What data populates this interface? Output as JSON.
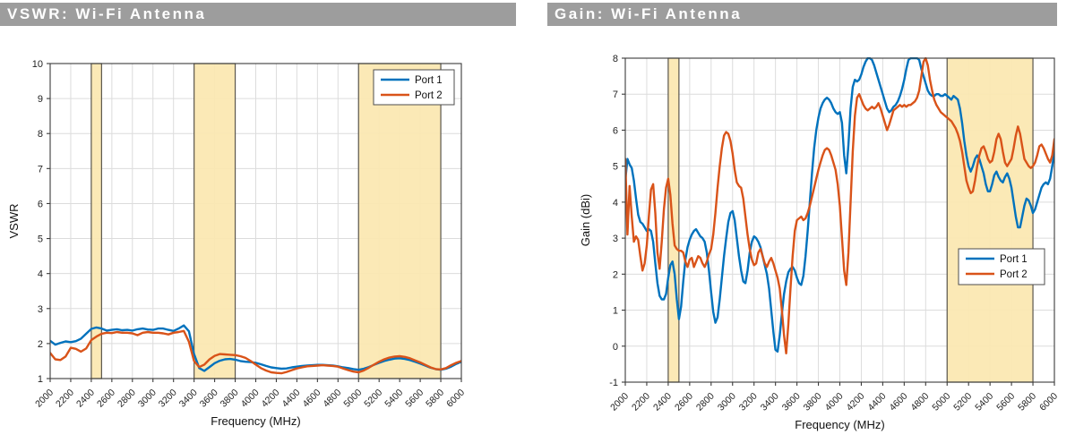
{
  "styles": {
    "page_bg": "#FFFFFF",
    "plot_bg": "#FFFFFF",
    "titlebar_bg": "#9D9D9D",
    "titlebar_text": "#FFFFFF",
    "grid_color": "#DCDCDC",
    "axis_color": "#3B3B3B",
    "tick_label_color": "#222222",
    "band_fill": "#FBE7B0",
    "band_border": "#5B574D",
    "legend_bg": "#FFFFFF",
    "legend_border": "#4D4D4D"
  },
  "chart_data": [
    {
      "type": "line",
      "title": "VSWR: Wi-Fi Antenna",
      "xlabel": "Frequency (MHz)",
      "ylabel": "VSWR",
      "xlim": [
        2000,
        6000
      ],
      "ylim": [
        1,
        10
      ],
      "xticks": [
        2000,
        2200,
        2400,
        2600,
        2800,
        3000,
        3200,
        3400,
        3600,
        3800,
        4000,
        4200,
        4400,
        4600,
        4800,
        5000,
        5200,
        5400,
        5600,
        5800,
        6000
      ],
      "yticks": [
        1,
        2,
        3,
        4,
        5,
        6,
        7,
        8,
        9,
        10
      ],
      "grid": true,
      "legend": {
        "entries": [
          "Port 1",
          "Port 2"
        ],
        "location": "northeast"
      },
      "highlight_bands": [
        [
          2400,
          2500
        ],
        [
          3400,
          3800
        ],
        [
          5000,
          5800
        ]
      ],
      "x_start": 2000,
      "x_step": 50,
      "series": [
        {
          "name": "Port 1",
          "color": "#0072BD",
          "values": [
            2.08,
            1.97,
            2.02,
            2.06,
            2.04,
            2.07,
            2.14,
            2.28,
            2.42,
            2.46,
            2.43,
            2.37,
            2.39,
            2.41,
            2.38,
            2.39,
            2.37,
            2.41,
            2.43,
            2.4,
            2.39,
            2.43,
            2.43,
            2.39,
            2.36,
            2.43,
            2.52,
            2.35,
            1.7,
            1.3,
            1.22,
            1.33,
            1.44,
            1.51,
            1.55,
            1.56,
            1.54,
            1.5,
            1.48,
            1.47,
            1.45,
            1.41,
            1.36,
            1.32,
            1.3,
            1.28,
            1.29,
            1.32,
            1.34,
            1.36,
            1.37,
            1.38,
            1.39,
            1.39,
            1.38,
            1.37,
            1.35,
            1.32,
            1.3,
            1.27,
            1.25,
            1.28,
            1.33,
            1.39,
            1.45,
            1.5,
            1.54,
            1.57,
            1.58,
            1.56,
            1.53,
            1.48,
            1.43,
            1.37,
            1.31,
            1.27,
            1.25,
            1.28,
            1.34,
            1.42,
            1.48
          ]
        },
        {
          "name": "Port 2",
          "color": "#D95319",
          "values": [
            1.73,
            1.55,
            1.53,
            1.63,
            1.88,
            1.85,
            1.77,
            1.86,
            2.1,
            2.2,
            2.28,
            2.31,
            2.3,
            2.33,
            2.31,
            2.31,
            2.29,
            2.24,
            2.31,
            2.33,
            2.31,
            2.31,
            2.29,
            2.26,
            2.31,
            2.33,
            2.36,
            2.05,
            1.5,
            1.33,
            1.4,
            1.55,
            1.65,
            1.7,
            1.69,
            1.68,
            1.67,
            1.64,
            1.59,
            1.5,
            1.4,
            1.3,
            1.23,
            1.18,
            1.16,
            1.15,
            1.19,
            1.24,
            1.29,
            1.32,
            1.35,
            1.36,
            1.37,
            1.38,
            1.37,
            1.36,
            1.34,
            1.29,
            1.24,
            1.2,
            1.18,
            1.23,
            1.31,
            1.4,
            1.48,
            1.55,
            1.6,
            1.63,
            1.64,
            1.62,
            1.58,
            1.52,
            1.46,
            1.39,
            1.32,
            1.27,
            1.26,
            1.3,
            1.38,
            1.45,
            1.5
          ]
        }
      ]
    },
    {
      "type": "line",
      "title": "Gain: Wi-Fi Antenna",
      "xlabel": "Frequency (MHz)",
      "ylabel": "Gain (dBi)",
      "xlim": [
        2000,
        6000
      ],
      "ylim": [
        -1,
        8
      ],
      "xticks": [
        2000,
        2200,
        2400,
        2600,
        2800,
        3000,
        3200,
        3400,
        3600,
        3800,
        4000,
        4200,
        4400,
        4600,
        4800,
        5000,
        5200,
        5400,
        5600,
        5800,
        6000
      ],
      "yticks": [
        -1,
        0,
        1,
        2,
        3,
        4,
        5,
        6,
        7,
        8
      ],
      "grid": true,
      "legend": {
        "entries": [
          "Port 1",
          "Port 2"
        ],
        "location": "southeast"
      },
      "highlight_bands": [
        [
          2400,
          2500
        ],
        [
          5000,
          5800
        ]
      ],
      "x_start": 2000,
      "x_step": 20,
      "series": [
        {
          "name": "Port 1",
          "color": "#0072BD",
          "values": [
            4.6,
            5.2,
            5.05,
            4.95,
            4.6,
            4.1,
            3.65,
            3.45,
            3.4,
            3.3,
            3.2,
            3.25,
            3.2,
            2.9,
            2.3,
            1.75,
            1.4,
            1.3,
            1.3,
            1.45,
            1.9,
            2.25,
            2.35,
            2.0,
            1.3,
            0.75,
            1.1,
            1.8,
            2.4,
            2.75,
            2.95,
            3.1,
            3.2,
            3.25,
            3.15,
            3.05,
            3.0,
            2.9,
            2.6,
            2.1,
            1.5,
            0.95,
            0.65,
            0.8,
            1.3,
            1.9,
            2.5,
            3.0,
            3.45,
            3.7,
            3.75,
            3.5,
            3.0,
            2.5,
            2.1,
            1.8,
            1.75,
            2.1,
            2.6,
            2.9,
            3.05,
            3.0,
            2.9,
            2.75,
            2.5,
            2.25,
            2.0,
            1.6,
            1.0,
            0.4,
            -0.1,
            -0.15,
            0.3,
            0.9,
            1.45,
            1.8,
            2.05,
            2.15,
            2.2,
            2.1,
            1.9,
            1.75,
            1.7,
            1.95,
            2.5,
            3.2,
            4.0,
            4.8,
            5.5,
            6.0,
            6.35,
            6.6,
            6.75,
            6.85,
            6.9,
            6.85,
            6.75,
            6.6,
            6.5,
            6.45,
            6.5,
            6.2,
            5.3,
            4.8,
            5.6,
            6.6,
            7.2,
            7.4,
            7.35,
            7.4,
            7.55,
            7.75,
            7.9,
            8.0,
            8.0,
            7.95,
            7.8,
            7.6,
            7.4,
            7.2,
            7.0,
            6.8,
            6.6,
            6.5,
            6.55,
            6.65,
            6.7,
            6.8,
            6.95,
            7.15,
            7.4,
            7.7,
            7.95,
            8.0,
            8.0,
            8.0,
            8.0,
            7.95,
            7.7,
            7.5,
            7.3,
            7.1,
            7.0,
            6.95,
            6.95,
            7.0,
            7.0,
            6.95,
            6.95,
            7.0,
            6.95,
            6.9,
            6.85,
            6.95,
            6.9,
            6.85,
            6.6,
            6.2,
            5.7,
            5.3,
            5.0,
            4.85,
            5.0,
            5.2,
            5.3,
            5.2,
            5.0,
            4.8,
            4.5,
            4.3,
            4.3,
            4.5,
            4.75,
            4.85,
            4.7,
            4.6,
            4.55,
            4.7,
            4.8,
            4.65,
            4.4,
            4.0,
            3.6,
            3.3,
            3.3,
            3.6,
            3.9,
            4.1,
            4.05,
            3.9,
            3.7,
            3.8,
            4.0,
            4.2,
            4.4,
            4.5,
            4.55,
            4.5,
            4.65,
            5.0,
            5.4
          ]
        },
        {
          "name": "Port 2",
          "color": "#D95319",
          "values": [
            5.2,
            3.1,
            4.45,
            3.6,
            2.9,
            3.05,
            2.95,
            2.5,
            2.1,
            2.3,
            2.8,
            3.6,
            4.35,
            4.5,
            3.7,
            2.6,
            2.15,
            2.9,
            3.8,
            4.4,
            4.65,
            4.2,
            3.4,
            2.8,
            2.7,
            2.65,
            2.65,
            2.6,
            2.35,
            2.2,
            2.4,
            2.45,
            2.2,
            2.35,
            2.5,
            2.45,
            2.3,
            2.2,
            2.35,
            2.55,
            2.7,
            3.1,
            3.7,
            4.4,
            5.0,
            5.5,
            5.85,
            5.95,
            5.9,
            5.7,
            5.35,
            4.9,
            4.55,
            4.45,
            4.4,
            4.1,
            3.6,
            3.1,
            2.7,
            2.4,
            2.25,
            2.3,
            2.6,
            2.7,
            2.5,
            2.3,
            2.2,
            2.35,
            2.45,
            2.3,
            2.1,
            1.9,
            1.6,
            1.0,
            0.3,
            -0.2,
            0.6,
            1.6,
            2.5,
            3.2,
            3.5,
            3.55,
            3.6,
            3.5,
            3.55,
            3.7,
            3.9,
            4.15,
            4.4,
            4.65,
            4.9,
            5.1,
            5.3,
            5.45,
            5.5,
            5.45,
            5.3,
            5.1,
            4.9,
            4.5,
            3.9,
            3.0,
            2.1,
            1.7,
            2.6,
            4.0,
            5.4,
            6.4,
            6.9,
            7.0,
            6.85,
            6.7,
            6.6,
            6.55,
            6.6,
            6.65,
            6.6,
            6.65,
            6.75,
            6.6,
            6.4,
            6.2,
            6.0,
            6.15,
            6.35,
            6.55,
            6.6,
            6.65,
            6.7,
            6.65,
            6.7,
            6.65,
            6.7,
            6.7,
            6.75,
            6.8,
            6.9,
            7.1,
            7.5,
            7.9,
            8.0,
            7.8,
            7.4,
            7.1,
            6.85,
            6.7,
            6.6,
            6.5,
            6.45,
            6.4,
            6.35,
            6.3,
            6.25,
            6.15,
            6.05,
            5.9,
            5.7,
            5.4,
            5.0,
            4.6,
            4.4,
            4.25,
            4.3,
            4.6,
            5.0,
            5.3,
            5.5,
            5.55,
            5.4,
            5.2,
            5.1,
            5.15,
            5.4,
            5.75,
            5.9,
            5.75,
            5.4,
            5.1,
            5.0,
            5.1,
            5.2,
            5.5,
            5.85,
            6.1,
            5.9,
            5.55,
            5.2,
            5.1,
            5.0,
            4.95,
            5.0,
            5.1,
            5.3,
            5.55,
            5.6,
            5.5,
            5.35,
            5.2,
            5.1,
            5.3,
            5.75
          ]
        }
      ]
    }
  ]
}
